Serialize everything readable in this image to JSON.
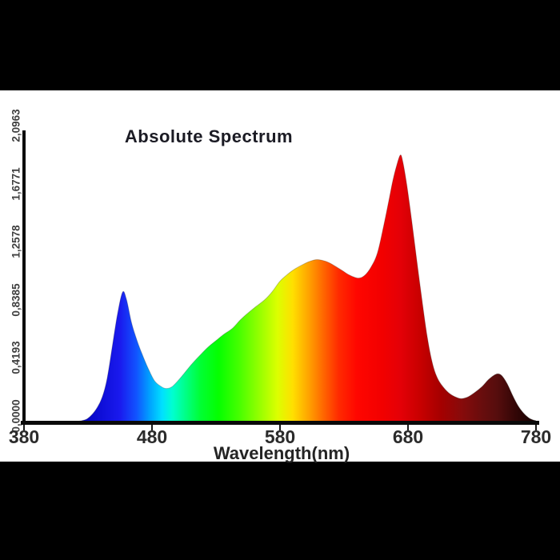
{
  "colors": {
    "letterbox": "#000000",
    "panel": "#ffffff",
    "axis": "#0a0a0a",
    "title_text": "#1b1b24",
    "tick_text": "#2b2b2b"
  },
  "chart_data": {
    "type": "area",
    "title": "Absolute Spectrum",
    "xlabel": "Wavelength(nm)",
    "ylabel": "",
    "xlim": [
      380,
      780
    ],
    "ylim": [
      0,
      2.0963
    ],
    "grid": false,
    "legend": false,
    "x_ticks": [
      380,
      480,
      580,
      680,
      780
    ],
    "x_tick_labels": [
      "380",
      "480",
      "580",
      "680",
      "780"
    ],
    "y_ticks": [
      0.0,
      0.4193,
      0.8385,
      1.2578,
      1.6771,
      2.0963
    ],
    "y_tick_labels": [
      "0,0000",
      "0,4193",
      "0,8385",
      "1,2578",
      "1,6771",
      "2,0963"
    ],
    "series": [
      {
        "name": "absolute-spectrum",
        "points": [
          [
            380,
            0
          ],
          [
            400,
            0
          ],
          [
            410,
            0.002
          ],
          [
            415,
            0.004
          ],
          [
            420,
            0.006
          ],
          [
            425,
            0.012
          ],
          [
            430,
            0.03
          ],
          [
            436,
            0.09
          ],
          [
            441,
            0.18
          ],
          [
            445,
            0.32
          ],
          [
            449,
            0.55
          ],
          [
            453,
            0.78
          ],
          [
            457,
            0.94
          ],
          [
            460,
            0.89
          ],
          [
            464,
            0.72
          ],
          [
            468,
            0.6
          ],
          [
            472,
            0.5
          ],
          [
            477,
            0.39
          ],
          [
            482,
            0.3
          ],
          [
            487,
            0.26
          ],
          [
            491,
            0.245
          ],
          [
            496,
            0.26
          ],
          [
            503,
            0.33
          ],
          [
            511,
            0.42
          ],
          [
            518,
            0.49
          ],
          [
            524,
            0.545
          ],
          [
            530,
            0.59
          ],
          [
            536,
            0.635
          ],
          [
            543,
            0.68
          ],
          [
            549,
            0.74
          ],
          [
            555,
            0.79
          ],
          [
            561,
            0.835
          ],
          [
            568,
            0.885
          ],
          [
            574,
            0.945
          ],
          [
            580,
            1.02
          ],
          [
            586,
            1.07
          ],
          [
            592,
            1.11
          ],
          [
            599,
            1.145
          ],
          [
            604,
            1.165
          ],
          [
            609,
            1.175
          ],
          [
            615,
            1.165
          ],
          [
            620,
            1.145
          ],
          [
            628,
            1.1
          ],
          [
            634,
            1.065
          ],
          [
            641,
            1.042
          ],
          [
            646,
            1.06
          ],
          [
            651,
            1.12
          ],
          [
            656,
            1.22
          ],
          [
            661,
            1.42
          ],
          [
            665,
            1.6
          ],
          [
            668,
            1.74
          ],
          [
            671,
            1.85
          ],
          [
            674,
            1.93
          ],
          [
            676,
            1.88
          ],
          [
            679,
            1.72
          ],
          [
            683,
            1.45
          ],
          [
            687,
            1.16
          ],
          [
            691,
            0.88
          ],
          [
            695,
            0.62
          ],
          [
            699,
            0.43
          ],
          [
            703,
            0.32
          ],
          [
            708,
            0.25
          ],
          [
            713,
            0.205
          ],
          [
            718,
            0.18
          ],
          [
            722,
            0.172
          ],
          [
            727,
            0.185
          ],
          [
            732,
            0.215
          ],
          [
            738,
            0.26
          ],
          [
            743,
            0.31
          ],
          [
            748,
            0.345
          ],
          [
            751,
            0.35
          ],
          [
            754,
            0.33
          ],
          [
            758,
            0.27
          ],
          [
            762,
            0.19
          ],
          [
            766,
            0.12
          ],
          [
            770,
            0.07
          ],
          [
            774,
            0.035
          ],
          [
            777,
            0.02
          ],
          [
            780,
            0.012
          ]
        ]
      }
    ],
    "spectrum_gradient": [
      [
        380,
        "#000028"
      ],
      [
        400,
        "#000055"
      ],
      [
        415,
        "#0000a0"
      ],
      [
        435,
        "#0a0ad0"
      ],
      [
        455,
        "#1a1aee"
      ],
      [
        468,
        "#1155ff"
      ],
      [
        478,
        "#00a0ff"
      ],
      [
        488,
        "#00e0ff"
      ],
      [
        496,
        "#00ffd0"
      ],
      [
        506,
        "#00ff88"
      ],
      [
        518,
        "#00ff33"
      ],
      [
        532,
        "#05ff00"
      ],
      [
        548,
        "#46ff00"
      ],
      [
        564,
        "#96ff00"
      ],
      [
        578,
        "#dcff00"
      ],
      [
        590,
        "#ffdf00"
      ],
      [
        602,
        "#ffa500"
      ],
      [
        614,
        "#ff6600"
      ],
      [
        626,
        "#ff2a00"
      ],
      [
        640,
        "#ff0600"
      ],
      [
        660,
        "#f20000"
      ],
      [
        674,
        "#e40007"
      ],
      [
        690,
        "#c70000"
      ],
      [
        706,
        "#a40000"
      ],
      [
        722,
        "#870b0b"
      ],
      [
        738,
        "#680d0d"
      ],
      [
        750,
        "#550d0d"
      ],
      [
        764,
        "#330606"
      ],
      [
        780,
        "#140101"
      ]
    ]
  }
}
